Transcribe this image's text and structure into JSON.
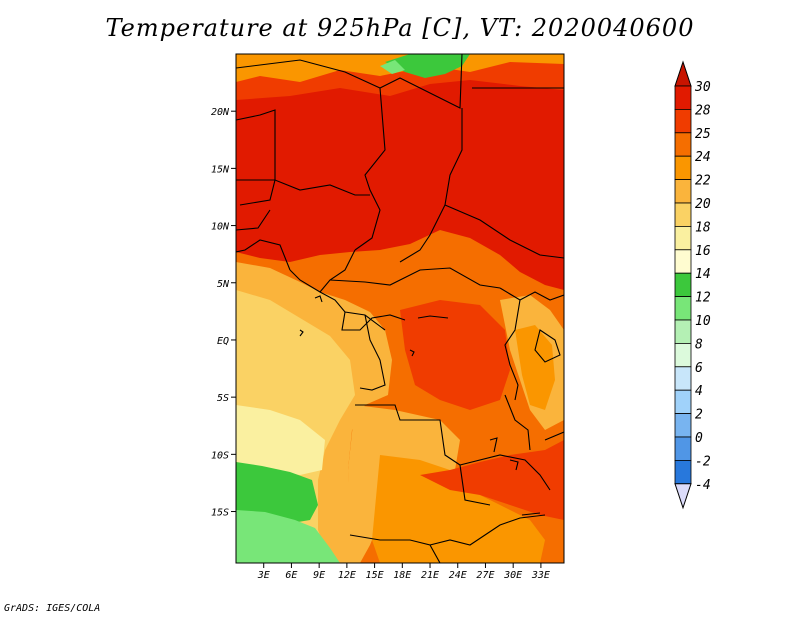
{
  "title": "Temperature at 925hPa [C], VT: 2020040600",
  "credit": "GrADS: IGES/COLA",
  "map": {
    "lon_range": [
      0,
      35.5
    ],
    "lat_range": [
      -19.5,
      25
    ],
    "lat_ticks": [
      {
        "lat": 20,
        "label": "20N"
      },
      {
        "lat": 15,
        "label": "15N"
      },
      {
        "lat": 10,
        "label": "10N"
      },
      {
        "lat": 5,
        "label": "5N"
      },
      {
        "lat": 0,
        "label": "EQ"
      },
      {
        "lat": -5,
        "label": "5S"
      },
      {
        "lat": -10,
        "label": "10S"
      },
      {
        "lat": -15,
        "label": "15S"
      }
    ],
    "lon_ticks": [
      {
        "lon": 3,
        "label": "3E"
      },
      {
        "lon": 6,
        "label": "6E"
      },
      {
        "lon": 9,
        "label": "9E"
      },
      {
        "lon": 12,
        "label": "12E"
      },
      {
        "lon": 15,
        "label": "15E"
      },
      {
        "lon": 18,
        "label": "18E"
      },
      {
        "lon": 21,
        "label": "21E"
      },
      {
        "lon": 24,
        "label": "24E"
      },
      {
        "lon": 27,
        "label": "27E"
      },
      {
        "lon": 30,
        "label": "30E"
      },
      {
        "lon": 33,
        "label": "33E"
      }
    ]
  },
  "colorbar": {
    "labels": [
      "30",
      "28",
      "25",
      "24",
      "22",
      "20",
      "18",
      "16",
      "14",
      "12",
      "10",
      "8",
      "6",
      "4",
      "2",
      "0",
      "-2",
      "-4"
    ],
    "colors": [
      "#e11a00",
      "#f03c00",
      "#f56e00",
      "#fa9600",
      "#fab43c",
      "#fad264",
      "#faf0a0",
      "#fffcd0",
      "#3cc83c",
      "#78e678",
      "#b4f0b4",
      "#dcfadc",
      "#c8e6fa",
      "#a0d2fa",
      "#78b4f0",
      "#5096e6",
      "#2878dc",
      "#1450b4",
      "#0a2d8c",
      "#000064"
    ],
    "top_color": "#c81400",
    "bottom_color": "#dcdcfa"
  }
}
